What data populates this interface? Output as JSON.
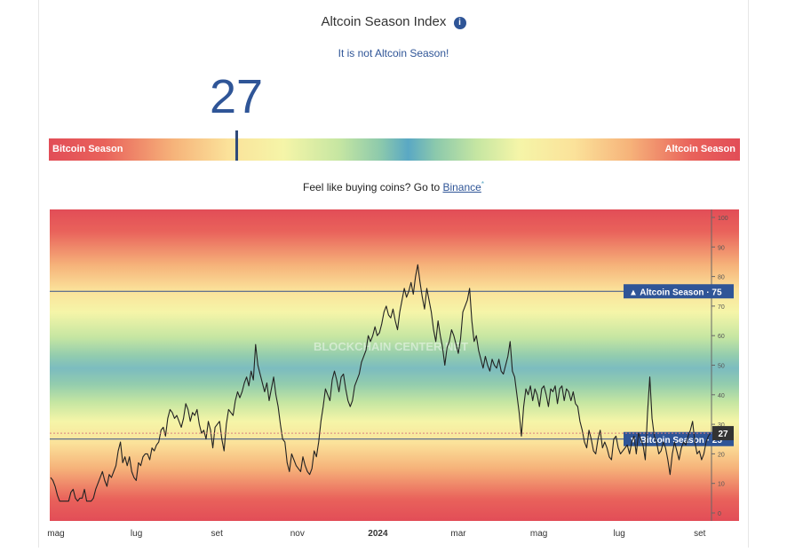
{
  "header": {
    "title": "Altcoin Season Index",
    "info_icon": "info-icon",
    "status": "It is not Altcoin Season!"
  },
  "index": {
    "value": "27",
    "value_number": 27,
    "scale_left_label": "Bitcoin Season",
    "scale_right_label": "Altcoin Season"
  },
  "promo": {
    "prefix": "Feel like buying coins? Go to ",
    "link": "Binance",
    "sup": "*"
  },
  "chart_data": {
    "type": "line",
    "title": "",
    "ylim": [
      0,
      100
    ],
    "y_ticks": [
      "0",
      "10",
      "20",
      "30",
      "40",
      "50",
      "60",
      "70",
      "80",
      "90",
      "100"
    ],
    "x_ticks": [
      {
        "label": "mag",
        "bold": false
      },
      {
        "label": "lug",
        "bold": false
      },
      {
        "label": "set",
        "bold": false
      },
      {
        "label": "nov",
        "bold": false
      },
      {
        "label": "2024",
        "bold": true
      },
      {
        "label": "mar",
        "bold": false
      },
      {
        "label": "mag",
        "bold": false
      },
      {
        "label": "lug",
        "bold": false
      },
      {
        "label": "set",
        "bold": false
      }
    ],
    "reference_lines": [
      {
        "label": "▲ Altcoin Season",
        "value": 75,
        "value_text": "75"
      },
      {
        "label": "▼ Bitcoin Season",
        "value": 25,
        "value_text": "25"
      }
    ],
    "current": {
      "value": 27,
      "value_text": "27"
    },
    "watermark": "BLOCKCHAIN CENTER.NET",
    "series": [
      {
        "values": [
          12,
          11,
          9,
          6,
          4,
          4,
          4,
          4,
          4,
          7,
          8,
          5,
          4,
          5,
          5,
          8,
          4,
          4,
          4,
          5,
          8,
          10,
          12,
          14,
          11,
          9,
          13,
          12,
          14,
          16,
          21,
          24,
          17,
          19,
          16,
          19,
          14,
          12,
          11,
          17,
          16,
          19,
          20,
          20,
          18,
          22,
          21,
          23,
          24,
          28,
          29,
          26,
          32,
          35,
          34,
          32,
          33,
          31,
          29,
          32,
          37,
          35,
          31,
          34,
          33,
          35,
          30,
          27,
          28,
          25,
          31,
          28,
          22,
          29,
          30,
          31,
          25,
          21,
          30,
          35,
          34,
          33,
          38,
          41,
          39,
          41,
          44,
          46,
          43,
          48,
          45,
          57,
          50,
          47,
          44,
          41,
          44,
          38,
          42,
          46,
          40,
          36,
          30,
          25,
          24,
          17,
          14,
          20,
          18,
          16,
          15,
          14,
          19,
          16,
          14,
          13,
          15,
          21,
          19,
          24,
          31,
          36,
          42,
          40,
          38,
          45,
          48,
          45,
          41,
          46,
          47,
          42,
          38,
          36,
          38,
          43,
          45,
          47,
          51,
          53,
          55,
          60,
          58,
          60,
          63,
          60,
          61,
          64,
          68,
          70,
          67,
          66,
          69,
          65,
          62,
          68,
          72,
          76,
          73,
          75,
          78,
          74,
          80,
          84,
          78,
          73,
          69,
          76,
          72,
          68,
          62,
          58,
          65,
          60,
          56,
          50,
          56,
          58,
          62,
          60,
          57,
          54,
          59,
          68,
          70,
          72,
          76,
          65,
          58,
          60,
          55,
          52,
          49,
          53,
          50,
          48,
          52,
          50,
          49,
          52,
          48,
          47,
          50,
          53,
          58,
          48,
          46,
          40,
          34,
          26,
          36,
          42,
          40,
          43,
          38,
          42,
          40,
          36,
          42,
          43,
          40,
          36,
          42,
          41,
          43,
          37,
          42,
          43,
          38,
          42,
          41,
          38,
          41,
          37,
          36,
          31,
          28,
          24,
          22,
          28,
          25,
          21,
          20,
          25,
          28,
          22,
          24,
          22,
          19,
          18,
          25,
          26,
          22,
          20,
          21,
          22,
          23,
          20,
          24,
          26,
          20,
          27,
          25,
          23,
          18,
          34,
          46,
          32,
          26,
          24,
          20,
          21,
          24,
          22,
          18,
          13,
          20,
          24,
          21,
          18,
          22,
          24,
          23,
          26,
          28,
          31,
          24,
          20,
          21,
          18,
          20,
          24,
          26,
          27
        ]
      }
    ]
  }
}
